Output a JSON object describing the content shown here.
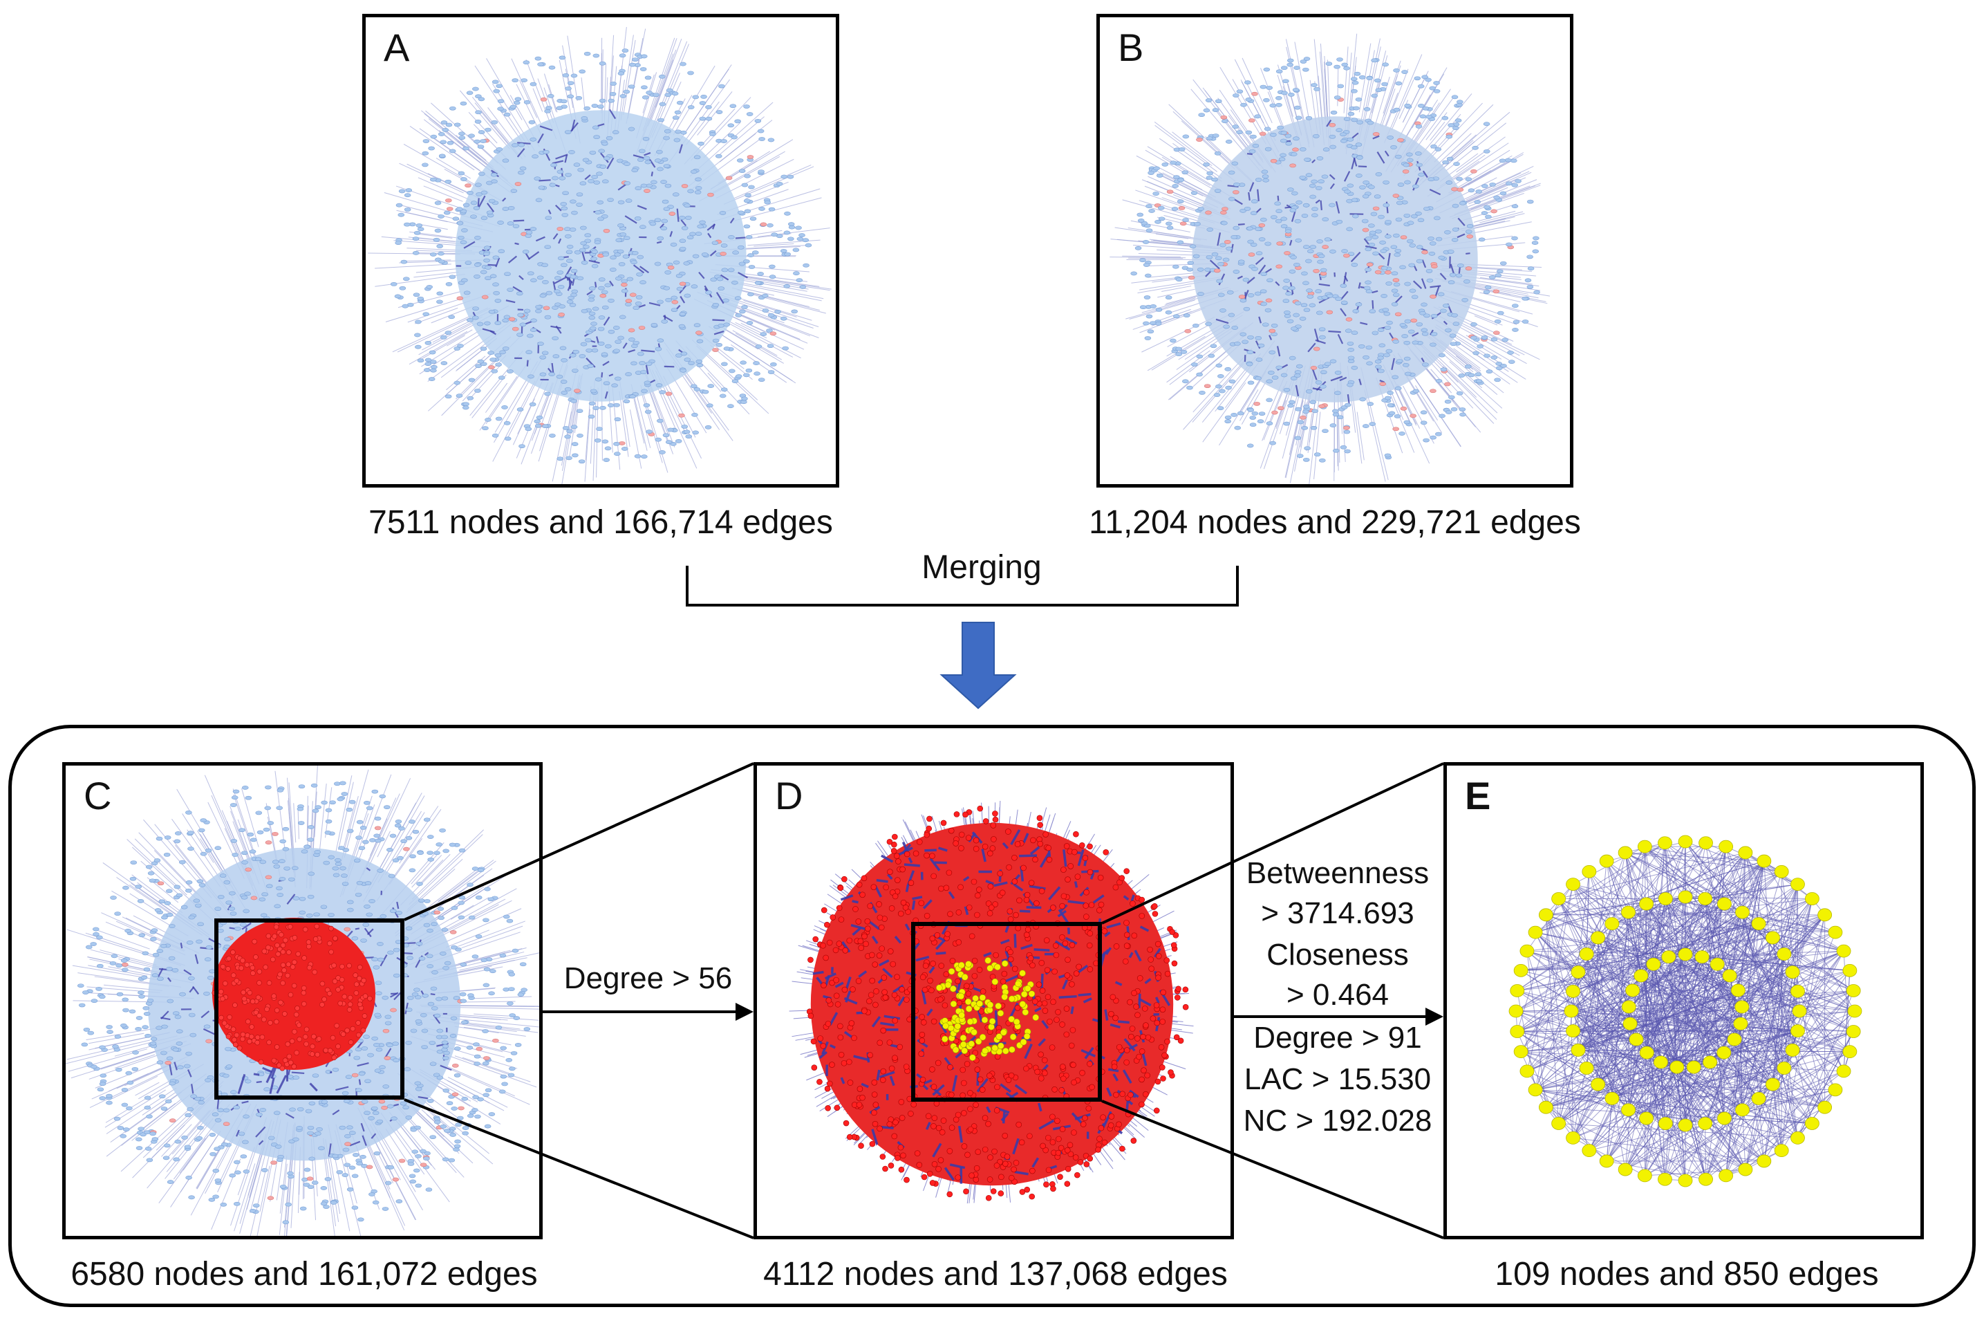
{
  "panels": {
    "A": {
      "label": "A",
      "caption": "7511 nodes and 166,714 edges"
    },
    "B": {
      "label": "B",
      "caption": "11,204 nodes and 229,721 edges"
    },
    "C": {
      "label": "C",
      "caption": "6580 nodes and 161,072 edges"
    },
    "D": {
      "label": "D",
      "caption": "4112 nodes and 137,068 edges"
    },
    "E": {
      "label": "E",
      "caption": "109 nodes and 850 edges"
    }
  },
  "merge_label": "Merging",
  "filter_cd": "Degree > 56",
  "filter_de": {
    "betweenness_label": "Betweenness",
    "betweenness_value": "> 3714.693",
    "closeness_label": "Closeness",
    "closeness_value": "> 0.464",
    "degree": "Degree > 91",
    "lac": "LAC > 15.530",
    "nc": "NC > 192.028"
  },
  "colors": {
    "node_blue": "#a9c8ee",
    "node_red": "#f4a6a6",
    "hub_red": "#ee2222",
    "edge_dark": "#3b3ba8",
    "selected_yellow": "#f2f200",
    "arrow_blue": "#3f6cc4"
  }
}
